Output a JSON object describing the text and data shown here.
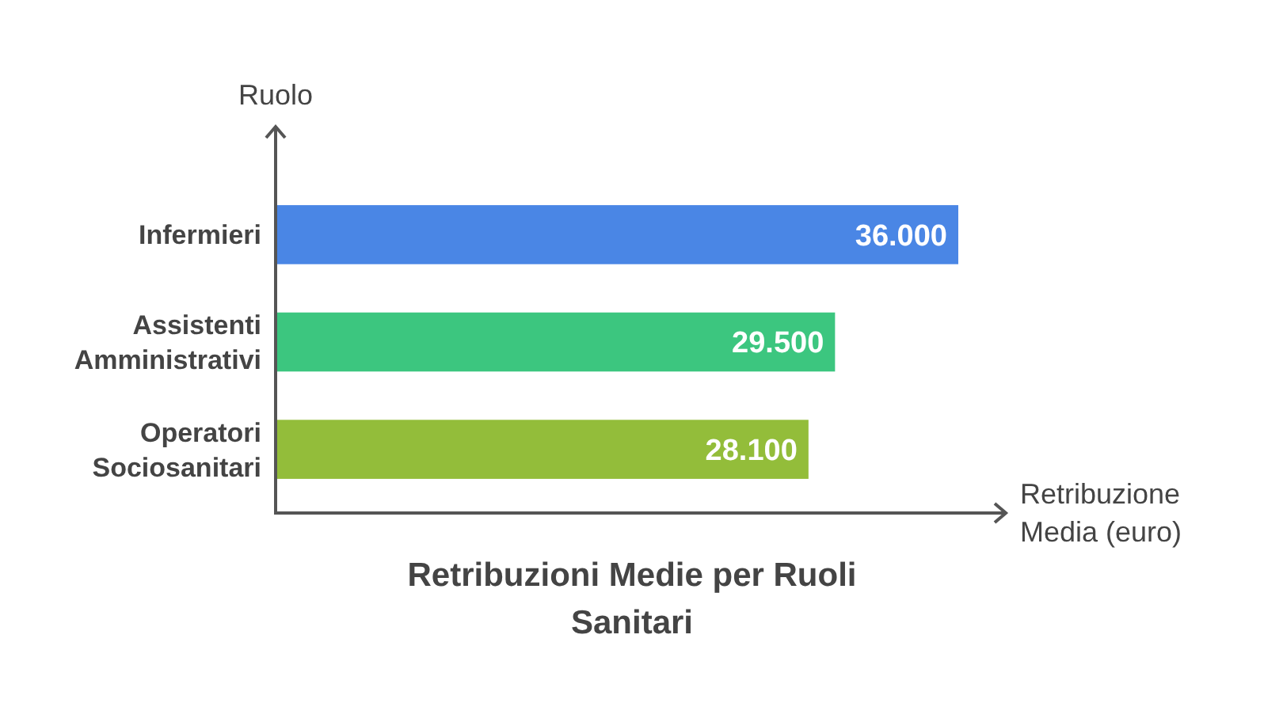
{
  "chart_data": {
    "type": "bar",
    "orientation": "horizontal",
    "title": "Retribuzioni Medie per Ruoli Sanitari",
    "xlabel": "Retribuzione Media (euro)",
    "ylabel": "Ruolo",
    "categories": [
      "Infermieri",
      "Assistenti Amministrativi",
      "Operatori Sociosanitari"
    ],
    "values": [
      36000,
      29500,
      28100
    ],
    "colors": [
      "#4a86e5",
      "#3cc67f",
      "#93bd3a"
    ],
    "value_labels": [
      "36.000",
      "29.500",
      "28.100"
    ]
  }
}
